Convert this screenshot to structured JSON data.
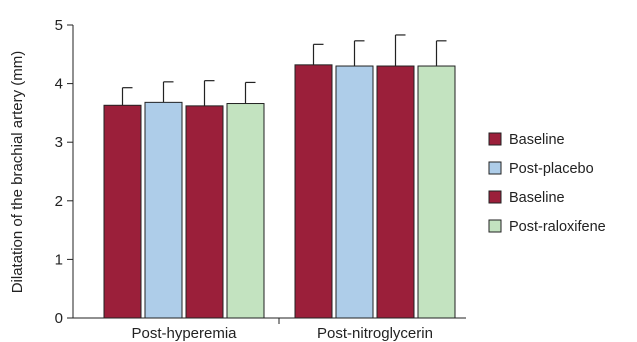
{
  "chart_data": {
    "type": "bar",
    "categories": [
      "Post-hyperemia",
      "Post-nitroglycerin"
    ],
    "ylabel": "Dilatation of the brachial artery (mm)",
    "xlabel": "",
    "ylim": [
      0,
      5
    ],
    "yticks": [
      0,
      1,
      2,
      3,
      4,
      5
    ],
    "grid": false,
    "legend_position": "right",
    "series": [
      {
        "name": "Baseline",
        "color": "#9b1f3a",
        "values": [
          3.63,
          4.32
        ],
        "errors": [
          0.3,
          0.35
        ]
      },
      {
        "name": "Post-placebo",
        "color": "#aecde9",
        "values": [
          3.68,
          4.3
        ],
        "errors": [
          0.35,
          0.43
        ]
      },
      {
        "name": "Baseline",
        "color": "#9b1f3a",
        "values": [
          3.62,
          4.3
        ],
        "errors": [
          0.43,
          0.53
        ]
      },
      {
        "name": "Post-raloxifene",
        "color": "#c3e3c0",
        "values": [
          3.66,
          4.3
        ],
        "errors": [
          0.36,
          0.43
        ]
      }
    ]
  }
}
